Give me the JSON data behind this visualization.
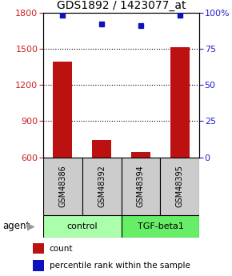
{
  "title": "GDS1892 / 1423077_at",
  "samples": [
    "GSM48386",
    "GSM48392",
    "GSM48394",
    "GSM48395"
  ],
  "counts": [
    1390,
    745,
    645,
    1510
  ],
  "percentiles": [
    98,
    92,
    91,
    98
  ],
  "ylim_left": [
    600,
    1800
  ],
  "ylim_right": [
    0,
    100
  ],
  "yticks_left": [
    600,
    900,
    1200,
    1500,
    1800
  ],
  "yticks_right": [
    0,
    25,
    50,
    75,
    100
  ],
  "ytick_right_labels": [
    "0",
    "25",
    "50",
    "75",
    "100%"
  ],
  "bar_color": "#bb1111",
  "dot_color": "#1111bb",
  "bar_width": 0.5,
  "title_fontsize": 10,
  "tick_fontsize": 8,
  "right_tick_color": "#2222cc",
  "left_tick_color": "#cc2222",
  "grid_yticks": [
    900,
    1200,
    1500
  ],
  "group_info": [
    {
      "start": 0,
      "end": 1,
      "label": "control",
      "color": "#aaffaa"
    },
    {
      "start": 2,
      "end": 3,
      "label": "TGF-beta1",
      "color": "#66ee66"
    }
  ],
  "sample_box_color": "#cccccc",
  "agent_label": "agent",
  "legend_items": [
    {
      "color": "#bb1111",
      "label": "count"
    },
    {
      "color": "#1111bb",
      "label": "percentile rank within the sample"
    }
  ]
}
